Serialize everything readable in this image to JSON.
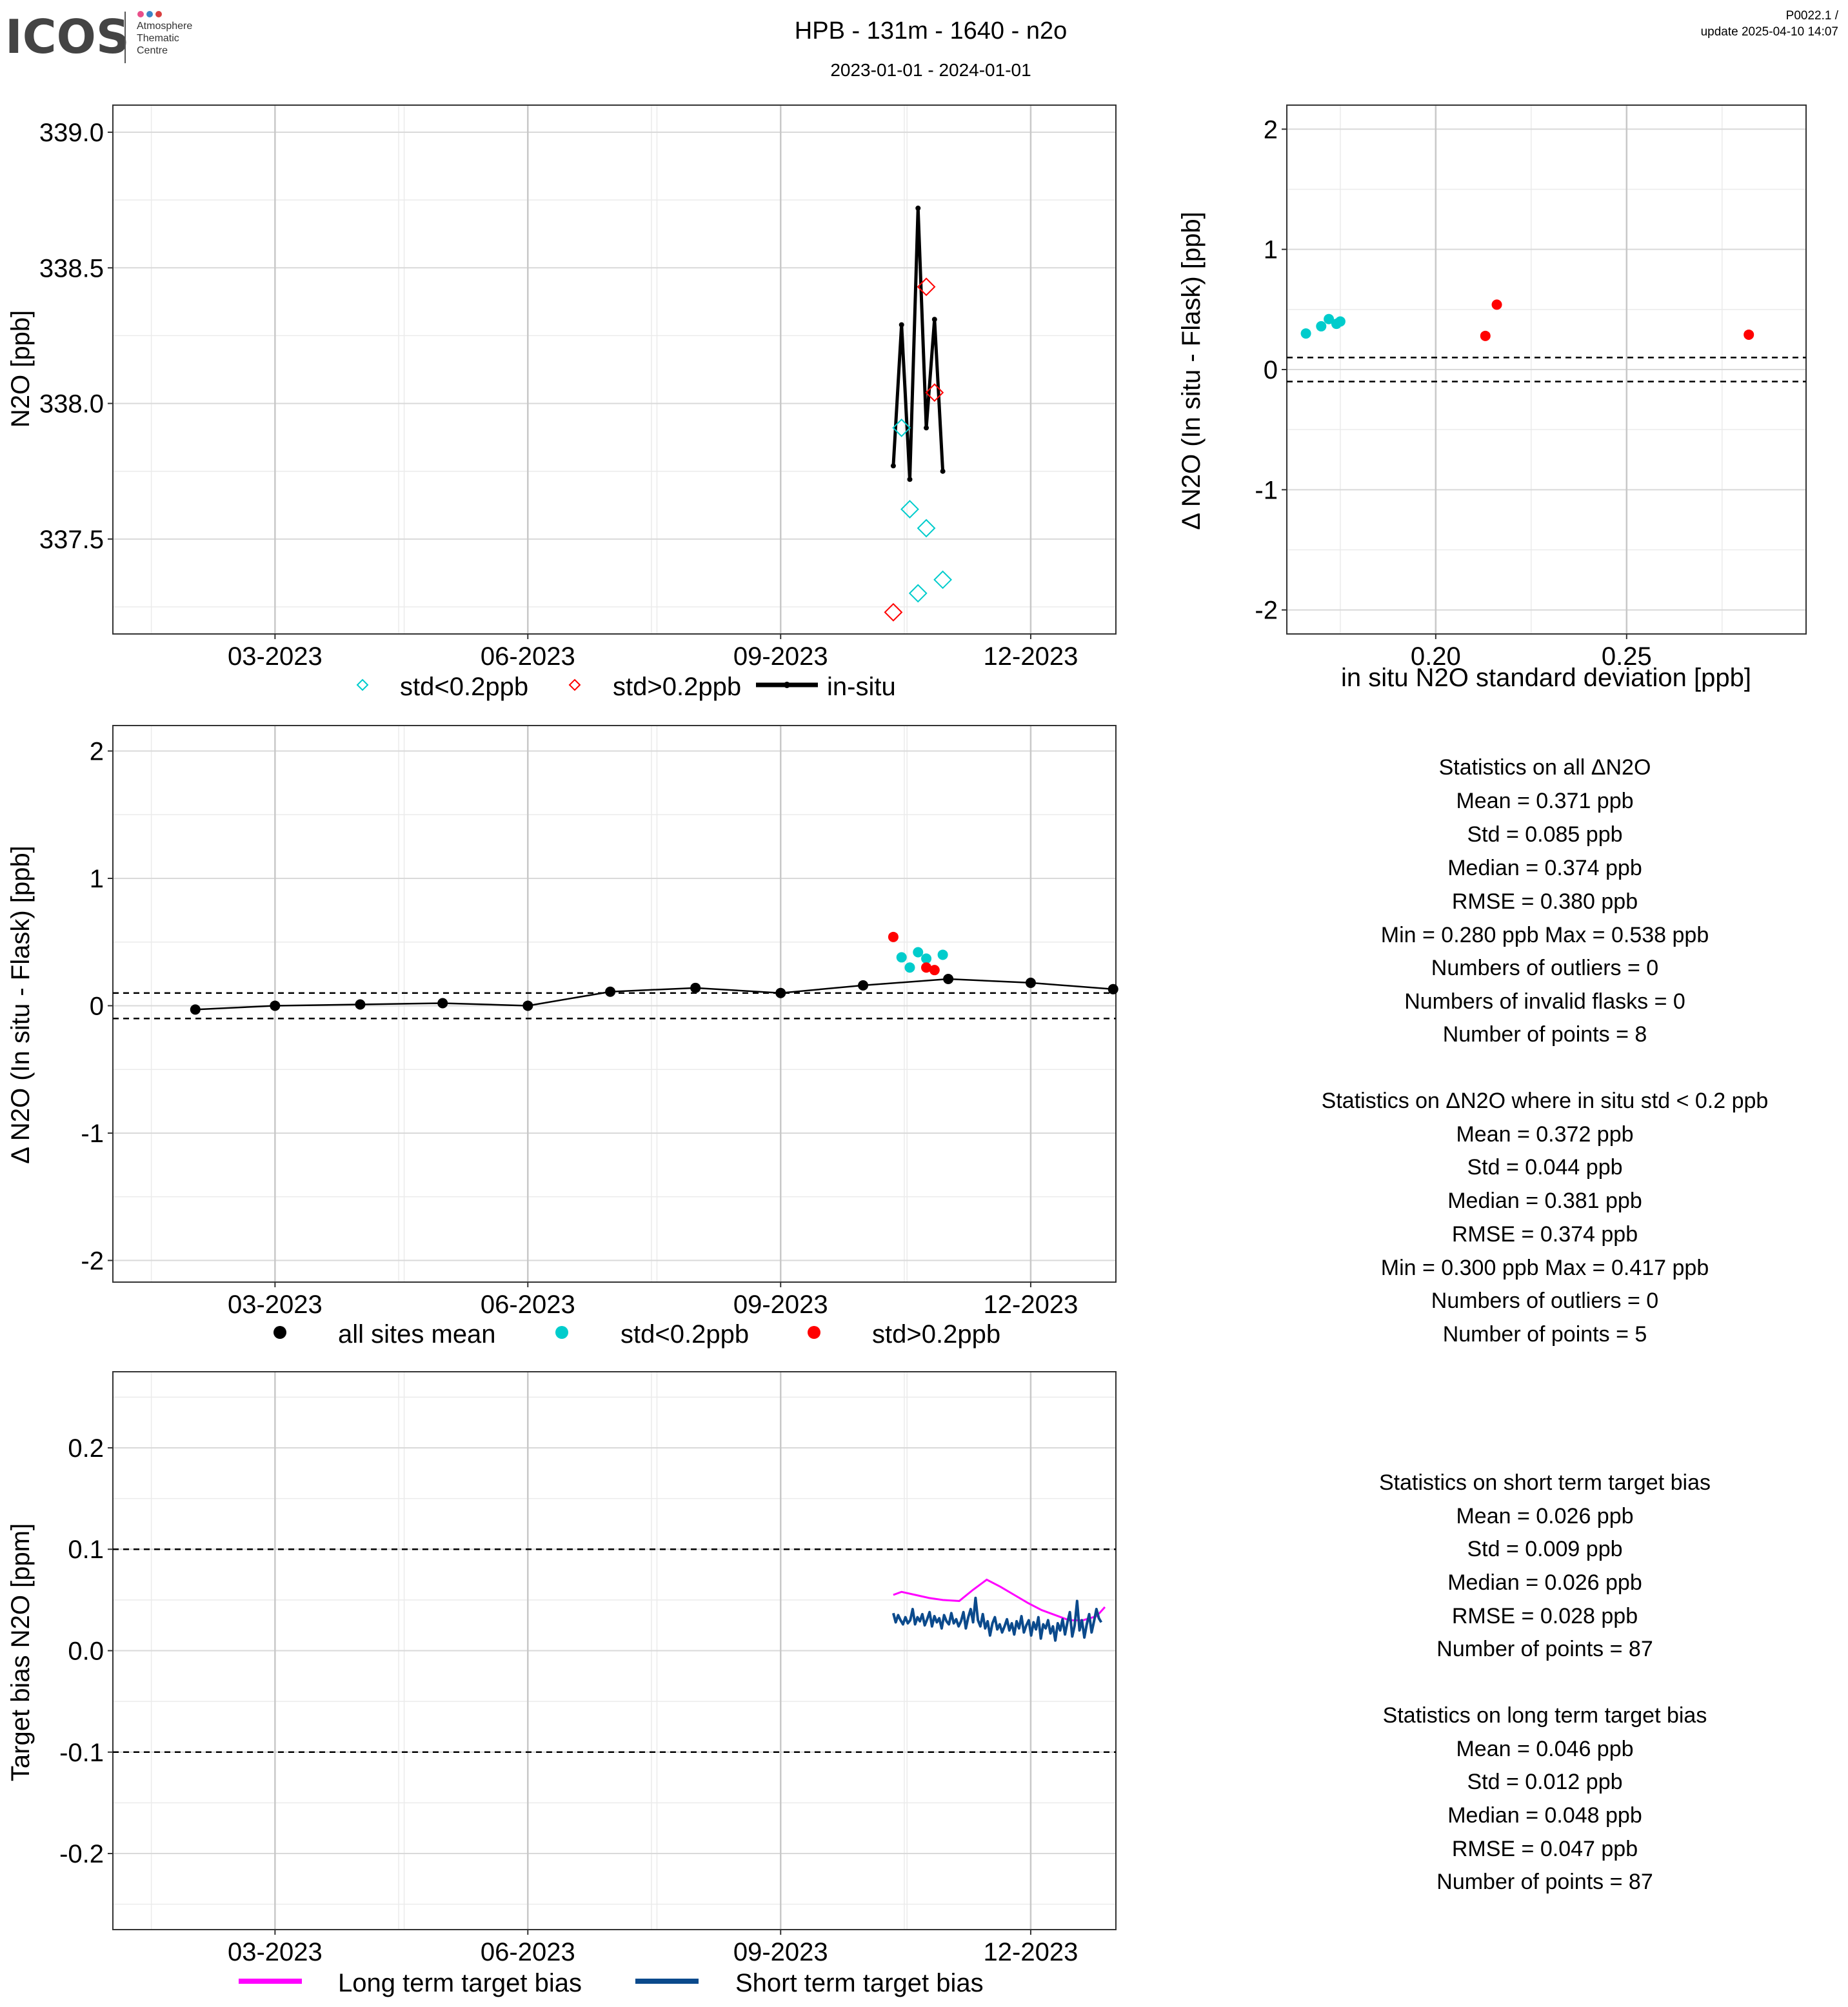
{
  "header": {
    "logo_text": "ICOS",
    "logo_sub": [
      "Atmosphere",
      "Thematic",
      "Centre"
    ],
    "logo_dot_colors": [
      "#e94f8a",
      "#3a86c8",
      "#d94040"
    ],
    "title": "HPB - 131m - 1640 - n2o",
    "date_range": "2023-01-01 - 2024-01-01",
    "version": "P0022.1 /",
    "update": "update  2025-04-10 14:07"
  },
  "colors": {
    "std_low": "#00cccc",
    "std_high": "#ff0000",
    "insitu": "#000000",
    "long_term": "#ff00ff",
    "short_term": "#0b4a8c"
  },
  "chart_data": [
    {
      "id": "timeseries",
      "type": "line",
      "ylabel": "N2O [ppb]",
      "xlim": [
        "2023-01-01",
        "2024-01-01"
      ],
      "ylim": [
        337.15,
        339.1
      ],
      "yticks": [
        337.5,
        338.0,
        338.5,
        339.0
      ],
      "ytick_labels": [
        "337.5",
        "338.0",
        "338.5",
        "339.0"
      ],
      "xticks": [
        "2023-03-01",
        "2023-06-01",
        "2023-09-01",
        "2023-12-01"
      ],
      "xtick_labels": [
        "03-2023",
        "06-2023",
        "09-2023",
        "12-2023"
      ],
      "insitu": {
        "name": "in-situ",
        "x": [
          "2023-10-12",
          "2023-10-15",
          "2023-10-18",
          "2023-10-21",
          "2023-10-24",
          "2023-10-27",
          "2023-10-30"
        ],
        "y": [
          337.77,
          338.29,
          337.72,
          338.72,
          337.91,
          338.31,
          337.75
        ]
      },
      "flask_low": {
        "name": "std<0.2ppb",
        "x": [
          "2023-10-15",
          "2023-10-18",
          "2023-10-21",
          "2023-10-24",
          "2023-10-30"
        ],
        "y": [
          337.91,
          337.61,
          337.3,
          337.54,
          337.35
        ]
      },
      "flask_high": {
        "name": "std>0.2ppb",
        "x": [
          "2023-10-12",
          "2023-10-24",
          "2023-10-27"
        ],
        "y": [
          337.23,
          338.43,
          338.04
        ]
      },
      "legend": [
        "std<0.2ppb",
        "std>0.2ppb",
        "in-situ"
      ]
    },
    {
      "id": "scatter",
      "type": "scatter",
      "xlabel": "in situ N2O standard deviation [ppb]",
      "ylabel": "Δ N2O (In situ - Flask) [ppb]",
      "xlim": [
        0.161,
        0.297
      ],
      "ylim": [
        -2.2,
        2.2
      ],
      "xticks": [
        0.2,
        0.25
      ],
      "xtick_labels": [
        "0.20",
        "0.25"
      ],
      "yticks": [
        -2,
        -1,
        0,
        1,
        2
      ],
      "ytick_labels": [
        "-2",
        "-1",
        "0",
        "1",
        "2"
      ],
      "hlines": [
        0.1,
        -0.1
      ],
      "low": {
        "x": [
          0.166,
          0.17,
          0.172,
          0.174,
          0.175
        ],
        "y": [
          0.3,
          0.36,
          0.42,
          0.38,
          0.4
        ]
      },
      "high": {
        "x": [
          0.213,
          0.216,
          0.282
        ],
        "y": [
          0.28,
          0.54,
          0.29
        ]
      }
    },
    {
      "id": "delta",
      "type": "scatter",
      "ylabel": "Δ N2O (In situ - Flask) [ppb]",
      "xlim": [
        "2023-01-01",
        "2024-01-01"
      ],
      "ylim": [
        -2.17,
        2.2
      ],
      "yticks": [
        -2,
        -1,
        0,
        1,
        2
      ],
      "ytick_labels": [
        "-2",
        "-1",
        "0",
        "1",
        "2"
      ],
      "xticks": [
        "2023-03-01",
        "2023-06-01",
        "2023-09-01",
        "2023-12-01"
      ],
      "xtick_labels": [
        "03-2023",
        "06-2023",
        "09-2023",
        "12-2023"
      ],
      "hlines": [
        0.1,
        -0.1
      ],
      "mean": {
        "name": "all sites mean",
        "x": [
          "2023-01-31",
          "2023-03-01",
          "2023-04-01",
          "2023-05-01",
          "2023-06-01",
          "2023-07-01",
          "2023-08-01",
          "2023-09-01",
          "2023-10-01",
          "2023-11-01",
          "2023-12-01",
          "2023-12-31"
        ],
        "y": [
          -0.03,
          0.0,
          0.01,
          0.02,
          0.0,
          0.11,
          0.14,
          0.1,
          0.16,
          0.21,
          0.18,
          0.13
        ]
      },
      "low": {
        "name": "std<0.2ppb",
        "x": [
          "2023-10-15",
          "2023-10-18",
          "2023-10-21",
          "2023-10-24",
          "2023-10-30"
        ],
        "y": [
          0.38,
          0.3,
          0.42,
          0.37,
          0.4
        ]
      },
      "high": {
        "name": "std>0.2ppb",
        "x": [
          "2023-10-12",
          "2023-10-24",
          "2023-10-27"
        ],
        "y": [
          0.54,
          0.3,
          0.28
        ]
      },
      "legend": [
        "all sites mean",
        "std<0.2ppb",
        "std>0.2ppb"
      ]
    },
    {
      "id": "target",
      "type": "line",
      "ylabel": "Target bias N2O [ppm]",
      "xlim": [
        "2023-01-01",
        "2024-01-01"
      ],
      "ylim": [
        -0.275,
        0.275
      ],
      "yticks": [
        -0.2,
        -0.1,
        0.0,
        0.1,
        0.2
      ],
      "ytick_labels": [
        "-0.2",
        "-0.1",
        "0.0",
        "0.1",
        "0.2"
      ],
      "xticks": [
        "2023-03-01",
        "2023-06-01",
        "2023-09-01",
        "2023-12-01"
      ],
      "xtick_labels": [
        "03-2023",
        "06-2023",
        "09-2023",
        "12-2023"
      ],
      "hlines": [
        0.1,
        -0.1
      ],
      "long_term": {
        "name": "Long term target bias",
        "x": [
          "2023-10-12",
          "2023-10-15",
          "2023-10-20",
          "2023-10-25",
          "2023-10-30",
          "2023-11-05",
          "2023-11-10",
          "2023-11-15",
          "2023-11-20",
          "2023-11-25",
          "2023-11-30",
          "2023-12-05",
          "2023-12-10",
          "2023-12-15",
          "2023-12-20",
          "2023-12-25",
          "2023-12-28"
        ],
        "y": [
          0.055,
          0.058,
          0.055,
          0.052,
          0.05,
          0.049,
          0.06,
          0.07,
          0.063,
          0.055,
          0.047,
          0.04,
          0.035,
          0.03,
          0.03,
          0.034,
          0.043
        ]
      },
      "short_term": {
        "name": "Short term target bias",
        "x_start": "2023-10-12",
        "x_step_days": 0.88,
        "y": [
          0.037,
          0.028,
          0.035,
          0.03,
          0.026,
          0.033,
          0.027,
          0.03,
          0.041,
          0.026,
          0.033,
          0.029,
          0.036,
          0.025,
          0.031,
          0.038,
          0.024,
          0.034,
          0.028,
          0.032,
          0.022,
          0.035,
          0.029,
          0.026,
          0.037,
          0.027,
          0.031,
          0.024,
          0.029,
          0.038,
          0.022,
          0.033,
          0.041,
          0.028,
          0.052,
          0.03,
          0.024,
          0.036,
          0.022,
          0.029,
          0.015,
          0.027,
          0.033,
          0.021,
          0.026,
          0.018,
          0.024,
          0.031,
          0.02,
          0.027,
          0.016,
          0.029,
          0.022,
          0.034,
          0.018,
          0.025,
          0.03,
          0.015,
          0.028,
          0.021,
          0.033,
          0.012,
          0.026,
          0.022,
          0.03,
          0.017,
          0.024,
          0.01,
          0.027,
          0.02,
          0.031,
          0.016,
          0.028,
          0.038,
          0.014,
          0.025,
          0.049,
          0.02,
          0.03,
          0.013,
          0.026,
          0.036,
          0.018,
          0.029,
          0.041,
          0.032,
          0.028
        ]
      },
      "legend": [
        "Long term target bias",
        "Short term target bias"
      ]
    }
  ],
  "stats": {
    "all_delta": [
      "Statistics on all ΔN2O",
      "Mean =  0.371 ppb",
      "Std =  0.085 ppb",
      "Median =  0.374 ppb",
      "RMSE =  0.380 ppb",
      "Min =  0.280 ppb Max =  0.538 ppb",
      "Numbers of outliers =  0",
      "Numbers of invalid flasks =  0",
      "Number of points =  8"
    ],
    "low_std_delta": [
      "Statistics on ΔN2O where in situ std < 0.2 ppb",
      "Mean =  0.372 ppb",
      "Std =  0.044 ppb",
      "Median =  0.381 ppb",
      "RMSE =  0.374 ppb",
      "Min =  0.300 ppb Max =  0.417 ppb",
      "Numbers of outliers =  0",
      "Number of points =  5"
    ],
    "short_term": [
      "Statistics on short term target bias",
      "Mean =  0.026 ppb",
      "Std =  0.009 ppb",
      "Median =  0.026 ppb",
      "RMSE =  0.028 ppb",
      "Number of points =  87"
    ],
    "long_term": [
      "Statistics on long term target bias",
      "Mean =  0.046 ppb",
      "Std =  0.012 ppb",
      "Median =  0.048 ppb",
      "RMSE =  0.047 ppb",
      "Number of points =  87"
    ]
  }
}
